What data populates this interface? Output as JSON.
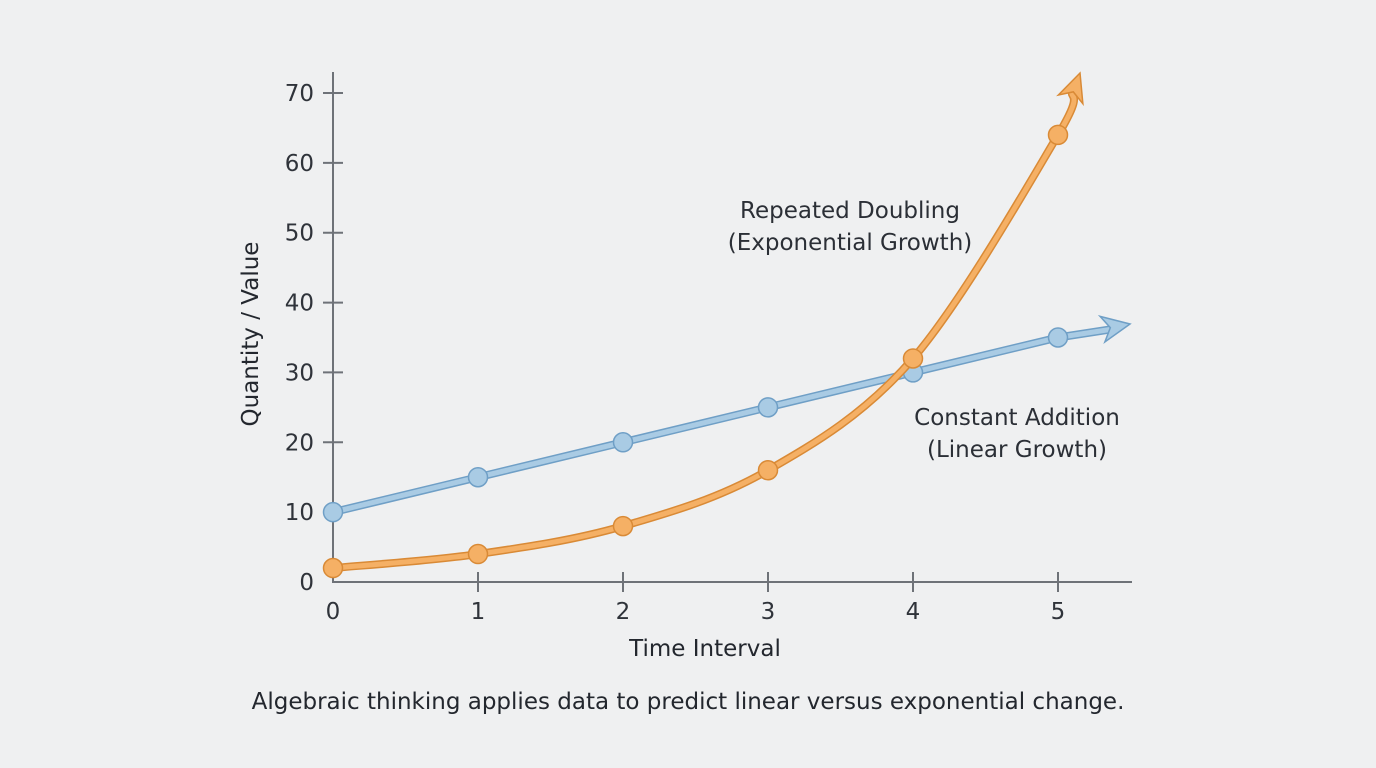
{
  "chart_data": {
    "type": "line",
    "title": "",
    "caption": "Algebraic thinking applies data to predict linear versus exponential change.",
    "xlabel": "Time Interval",
    "ylabel": "Quantity / Value",
    "x": [
      0,
      1,
      2,
      3,
      4,
      5
    ],
    "x_ticks": [
      "0",
      "1",
      "2",
      "3",
      "4",
      "5"
    ],
    "y_ticks": [
      "0",
      "10",
      "20",
      "30",
      "40",
      "50",
      "60",
      "70"
    ],
    "ylim": [
      0,
      70
    ],
    "xlim": [
      0,
      5.5
    ],
    "grid": false,
    "series": [
      {
        "name": "Constant Addition (Linear Growth)",
        "label_line1": "Constant Addition",
        "label_line2": "(Linear Growth)",
        "color": "#a9cbe4",
        "stroke": "#6f9fc6",
        "values": [
          10,
          15,
          20,
          25,
          30,
          35
        ],
        "arrow": true
      },
      {
        "name": "Repeated Doubling (Exponential Growth)",
        "label_line1": "Repeated Doubling",
        "label_line2": "(Exponential Growth)",
        "color": "#f5b065",
        "stroke": "#d98a36",
        "values": [
          2,
          4,
          8,
          16,
          32,
          64
        ],
        "arrow": true
      }
    ]
  }
}
